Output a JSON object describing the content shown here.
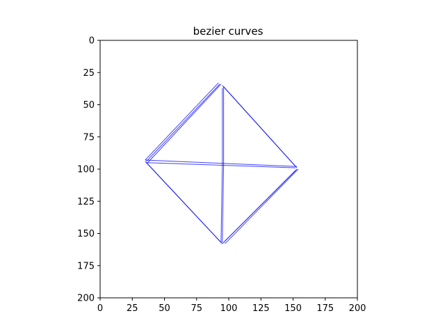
{
  "chart_data": {
    "type": "line",
    "title": "bezier curves",
    "xlabel": "",
    "ylabel": "",
    "xlim": [
      0,
      200
    ],
    "ylim": [
      200,
      0
    ],
    "y_inverted": true,
    "grid": false,
    "legend": "none",
    "x_ticks": [
      0,
      25,
      50,
      75,
      100,
      125,
      150,
      175,
      200
    ],
    "y_ticks": [
      0,
      25,
      50,
      75,
      100,
      125,
      150,
      175,
      200
    ],
    "x_tick_labels": [
      "0",
      "25",
      "50",
      "75",
      "100",
      "125",
      "150",
      "175",
      "200"
    ],
    "y_tick_labels": [
      "0",
      "25",
      "50",
      "75",
      "100",
      "125",
      "150",
      "175",
      "200"
    ],
    "line_color": "#0000ff",
    "series": [
      {
        "points": [
          [
            92,
            33
          ],
          [
            35,
            93
          ]
        ]
      },
      {
        "points": [
          [
            93,
            34
          ],
          [
            36,
            94
          ]
        ]
      },
      {
        "points": [
          [
            94,
            34
          ],
          [
            37,
            95
          ]
        ]
      },
      {
        "points": [
          [
            95,
            35
          ],
          [
            152,
            98
          ]
        ]
      },
      {
        "points": [
          [
            96,
            36
          ],
          [
            153,
            99
          ]
        ]
      },
      {
        "points": [
          [
            96,
            36
          ],
          [
            96,
            97
          ]
        ]
      },
      {
        "points": [
          [
            95,
            37
          ],
          [
            95,
            97
          ]
        ]
      },
      {
        "points": [
          [
            35,
            93
          ],
          [
            153,
            98
          ]
        ]
      },
      {
        "points": [
          [
            36,
            95
          ],
          [
            152,
            99
          ]
        ]
      },
      {
        "points": [
          [
            35,
            94
          ],
          [
            94,
            157
          ]
        ]
      },
      {
        "points": [
          [
            36,
            95
          ],
          [
            95,
            158
          ]
        ]
      },
      {
        "points": [
          [
            153,
            100
          ],
          [
            96,
            157
          ]
        ]
      },
      {
        "points": [
          [
            152,
            101
          ],
          [
            95,
            158
          ]
        ]
      },
      {
        "points": [
          [
            154,
            100
          ],
          [
            97,
            158
          ]
        ]
      },
      {
        "points": [
          [
            95,
            97
          ],
          [
            94,
            157
          ]
        ]
      },
      {
        "points": [
          [
            96,
            97
          ],
          [
            95,
            157
          ]
        ]
      }
    ]
  }
}
